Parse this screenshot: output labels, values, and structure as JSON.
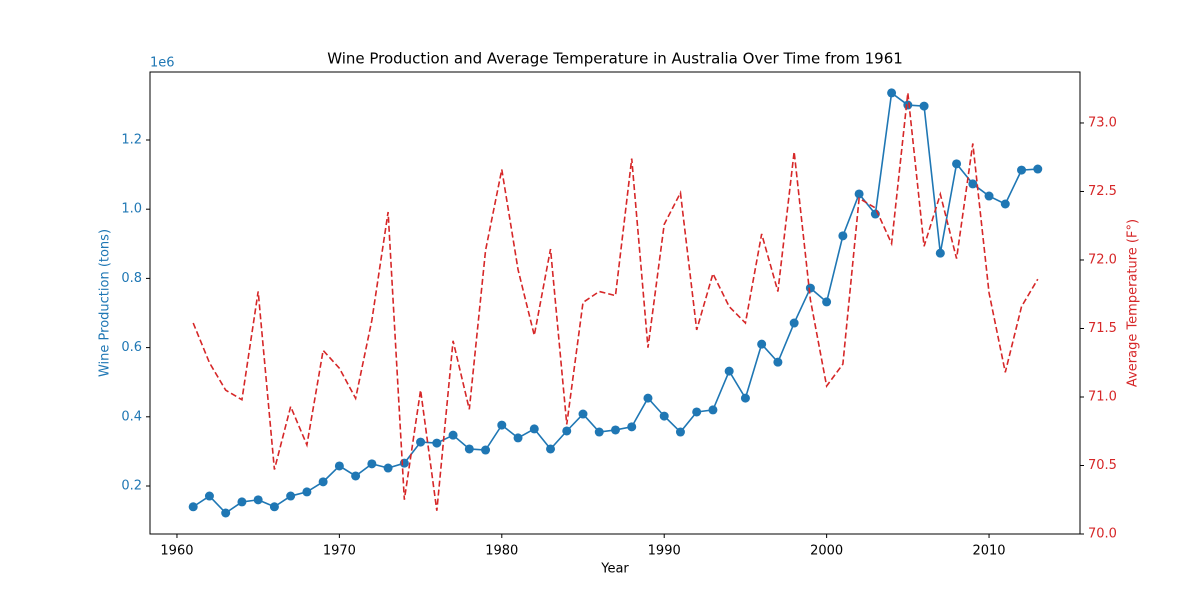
{
  "chart_data": {
    "type": "line",
    "title": "Wine Production and Average Temperature in Australia Over Time from 1961",
    "xlabel": "Year",
    "ylabel": "Wine Production (tons)",
    "y2label": "Average Temperature (F°)",
    "y_offset_text": "1e6",
    "x": [
      1961,
      1962,
      1963,
      1964,
      1965,
      1966,
      1967,
      1968,
      1969,
      1970,
      1971,
      1972,
      1973,
      1974,
      1975,
      1976,
      1977,
      1978,
      1979,
      1980,
      1981,
      1982,
      1983,
      1984,
      1985,
      1986,
      1987,
      1988,
      1989,
      1990,
      1991,
      1992,
      1993,
      1994,
      1995,
      1996,
      1997,
      1998,
      1999,
      2000,
      2001,
      2002,
      2003,
      2004,
      2005,
      2006,
      2007,
      2008,
      2009,
      2010,
      2011,
      2012,
      2013
    ],
    "series": [
      {
        "color": "#1f77b4",
        "linestyle": "solid",
        "marker": "o",
        "values": [
          140000,
          171000,
          122000,
          154000,
          160000,
          140000,
          171000,
          183000,
          212000,
          258000,
          229000,
          264000,
          252000,
          266000,
          327000,
          324000,
          347000,
          307000,
          304000,
          376000,
          339000,
          365000,
          307000,
          359000,
          408000,
          356000,
          362000,
          371000,
          454000,
          402000,
          356000,
          414000,
          420000,
          532000,
          454000,
          610000,
          558000,
          671000,
          772000,
          732000,
          923000,
          1044000,
          986000,
          1336000,
          1301000,
          1298000,
          873000,
          1131000,
          1073000,
          1038000,
          1015000,
          1113000,
          1116000
        ]
      },
      {
        "color": "#d62728",
        "linestyle": "dashed",
        "axis": "y2",
        "values": [
          71.54,
          71.25,
          71.05,
          70.98,
          71.77,
          70.47,
          70.93,
          70.65,
          71.34,
          71.21,
          70.99,
          71.56,
          72.35,
          70.25,
          71.05,
          70.17,
          71.41,
          70.91,
          72.07,
          72.66,
          71.93,
          71.45,
          72.08,
          70.8,
          71.69,
          71.77,
          71.74,
          72.74,
          71.36,
          72.26,
          72.49,
          71.49,
          71.9,
          71.66,
          71.54,
          72.19,
          71.77,
          72.79,
          71.71,
          71.08,
          71.24,
          72.45,
          72.38,
          72.12,
          73.22,
          72.1,
          72.48,
          72.01,
          72.85,
          71.76,
          71.18,
          71.66,
          71.86
        ]
      }
    ],
    "xlim": [
      1958.34,
      2015.6
    ],
    "xticks": [
      1960,
      1970,
      1980,
      1990,
      2000,
      2010
    ],
    "ylim": [
      61300,
      1396500
    ],
    "yticks": [
      {
        "value": 200000,
        "label": "0.2"
      },
      {
        "value": 400000,
        "label": "0.4"
      },
      {
        "value": 600000,
        "label": "0.6"
      },
      {
        "value": 800000,
        "label": "0.8"
      },
      {
        "value": 1000000,
        "label": "1.0"
      },
      {
        "value": 1200000,
        "label": "1.2"
      }
    ],
    "y2lim": [
      70.0,
      73.372
    ],
    "y2ticks": [
      {
        "value": 70,
        "label": "70.0"
      },
      70.5,
      {
        "value": 71,
        "label": "71.0"
      },
      71.5,
      {
        "value": 72,
        "label": "72.0"
      },
      72.5,
      {
        "value": 73,
        "label": "73.0"
      }
    ],
    "grid": false
  }
}
